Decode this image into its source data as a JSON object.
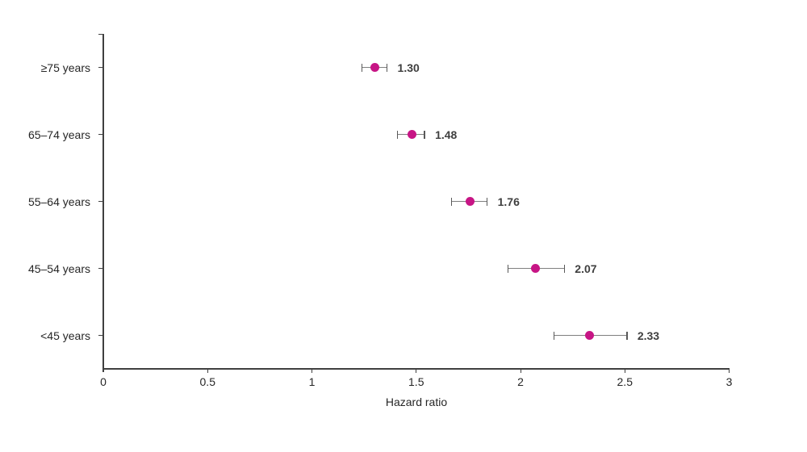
{
  "chart_data": {
    "type": "scatter",
    "subtype": "forest-plot",
    "title": "",
    "xlabel": "Hazard ratio",
    "ylabel": "",
    "xlim": [
      0,
      3
    ],
    "xticks": [
      0,
      0.5,
      1,
      1.5,
      2,
      2.5,
      3
    ],
    "xtick_labels": [
      "0",
      "0.5",
      "1",
      "1.5",
      "2",
      "2.5",
      "3"
    ],
    "grid": false,
    "legend": false,
    "categories": [
      "≥75 years",
      "65–74 years",
      "55–64 years",
      "45–54 years",
      "<45 years"
    ],
    "series": [
      {
        "name": "Hazard ratio",
        "values": [
          1.3,
          1.48,
          1.76,
          2.07,
          2.33
        ],
        "ci_low": [
          1.24,
          1.41,
          1.67,
          1.94,
          2.16
        ],
        "ci_high": [
          1.36,
          1.54,
          1.84,
          2.21,
          2.51
        ],
        "point_labels": [
          "1.30",
          "1.48",
          "1.76",
          "2.07",
          "2.33"
        ]
      }
    ],
    "colors": {
      "marker": "#C71585",
      "error_bar": "#7F7F7F",
      "error_cap": "#595959",
      "axis": "#404040",
      "tick_text": "#262626",
      "value_label": "#3F3F3F",
      "background": "#FFFFFF"
    }
  }
}
